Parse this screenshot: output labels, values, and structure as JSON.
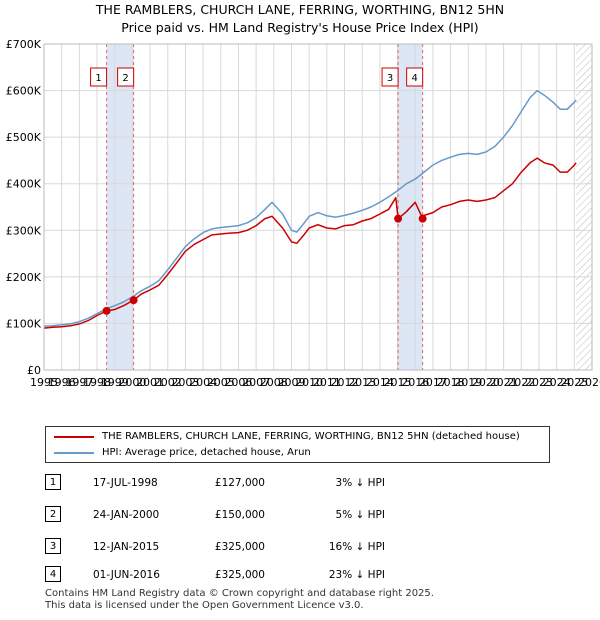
{
  "title_line1": "THE RAMBLERS, CHURCH LANE, FERRING, WORTHING, BN12 5HN",
  "title_line2": "Price paid vs. HM Land Registry's House Price Index (HPI)",
  "chart_data": {
    "type": "line",
    "xlim": [
      1995,
      2026
    ],
    "ylim": [
      0,
      700000
    ],
    "yticks": [
      0,
      100000,
      200000,
      300000,
      400000,
      500000,
      600000,
      700000
    ],
    "ytick_labels": [
      "£0",
      "£100K",
      "£200K",
      "£300K",
      "£400K",
      "£500K",
      "£600K",
      "£700K"
    ],
    "xticks": [
      1995,
      1996,
      1997,
      1998,
      1999,
      2000,
      2001,
      2002,
      2003,
      2004,
      2005,
      2006,
      2007,
      2008,
      2009,
      2010,
      2011,
      2012,
      2013,
      2014,
      2015,
      2016,
      2017,
      2018,
      2019,
      2020,
      2021,
      2022,
      2023,
      2024,
      2025,
      2026
    ],
    "xtick_labels": [
      "1995",
      "1996",
      "1997",
      "1998",
      "1999",
      "2000",
      "2001",
      "2002",
      "2003",
      "2004",
      "2005",
      "2006",
      "2007",
      "2008",
      "2009",
      "2010",
      "2011",
      "2012",
      "2013",
      "2014",
      "2015",
      "2016",
      "2017",
      "2018",
      "2019",
      "2020",
      "2021",
      "2022",
      "2023",
      "2024",
      "2025",
      "2026"
    ],
    "grid": true,
    "forecast_start": 2025.1,
    "shaded_periods": [
      [
        1998.54,
        2000.07
      ],
      [
        2015.03,
        2016.42
      ]
    ],
    "series": [
      {
        "name": "THE RAMBLERS, CHURCH LANE, FERRING, WORTHING, BN12 5HN (detached house)",
        "color": "#cc0000",
        "x": [
          1995.0,
          1995.5,
          1996.0,
          1996.5,
          1997.0,
          1997.5,
          1998.0,
          1998.54,
          1999.0,
          1999.5,
          2000.07,
          2000.5,
          2001.0,
          2001.5,
          2002.0,
          2002.5,
          2003.0,
          2003.5,
          2004.0,
          2004.5,
          2005.0,
          2005.5,
          2006.0,
          2006.5,
          2007.0,
          2007.5,
          2007.9,
          2008.5,
          2009.0,
          2009.3,
          2009.7,
          2010.0,
          2010.5,
          2011.0,
          2011.5,
          2012.0,
          2012.5,
          2013.0,
          2013.5,
          2014.0,
          2014.5,
          2014.9,
          2015.03,
          2015.1,
          2015.5,
          2016.0,
          2016.42,
          2016.5,
          2017.0,
          2017.5,
          2018.0,
          2018.5,
          2019.0,
          2019.5,
          2020.0,
          2020.5,
          2021.0,
          2021.5,
          2022.0,
          2022.5,
          2022.9,
          2023.3,
          2023.8,
          2024.2,
          2024.6,
          2025.0,
          2025.1
        ],
        "values": [
          90000,
          92000,
          93000,
          95000,
          99000,
          106000,
          117000,
          127000,
          130000,
          138000,
          150000,
          163000,
          172000,
          182000,
          205000,
          230000,
          255000,
          270000,
          280000,
          290000,
          292000,
          294000,
          295000,
          300000,
          310000,
          325000,
          330000,
          305000,
          275000,
          272000,
          290000,
          305000,
          312000,
          305000,
          303000,
          310000,
          312000,
          320000,
          325000,
          335000,
          345000,
          370000,
          325000,
          327000,
          340000,
          360000,
          325000,
          332000,
          338000,
          350000,
          355000,
          362000,
          365000,
          362000,
          365000,
          370000,
          385000,
          400000,
          425000,
          445000,
          455000,
          445000,
          440000,
          425000,
          425000,
          440000,
          445000
        ]
      },
      {
        "name": "HPI: Average price, detached house, Arun",
        "color": "#6699cc",
        "x": [
          1995.0,
          1995.5,
          1996.0,
          1996.5,
          1997.0,
          1997.5,
          1998.0,
          1998.5,
          1999.0,
          1999.5,
          2000.0,
          2000.5,
          2001.0,
          2001.5,
          2002.0,
          2002.5,
          2003.0,
          2003.5,
          2004.0,
          2004.5,
          2005.0,
          2005.5,
          2006.0,
          2006.5,
          2007.0,
          2007.5,
          2007.9,
          2008.5,
          2009.0,
          2009.3,
          2009.7,
          2010.0,
          2010.5,
          2011.0,
          2011.5,
          2012.0,
          2012.5,
          2013.0,
          2013.5,
          2014.0,
          2014.5,
          2015.0,
          2015.5,
          2016.0,
          2016.5,
          2017.0,
          2017.5,
          2018.0,
          2018.5,
          2019.0,
          2019.5,
          2020.0,
          2020.5,
          2021.0,
          2021.5,
          2022.0,
          2022.5,
          2022.9,
          2023.3,
          2023.8,
          2024.2,
          2024.6,
          2025.0,
          2025.1
        ],
        "values": [
          94000,
          95000,
          97000,
          99000,
          104000,
          111000,
          121000,
          131000,
          138000,
          146000,
          157000,
          170000,
          180000,
          192000,
          215000,
          240000,
          265000,
          282000,
          295000,
          303000,
          306000,
          308000,
          310000,
          316000,
          327000,
          345000,
          360000,
          335000,
          300000,
          296000,
          315000,
          330000,
          338000,
          331000,
          328000,
          332000,
          337000,
          343000,
          350000,
          360000,
          372000,
          385000,
          400000,
          410000,
          425000,
          440000,
          450000,
          457000,
          463000,
          465000,
          463000,
          468000,
          480000,
          500000,
          525000,
          555000,
          585000,
          600000,
          590000,
          575000,
          560000,
          560000,
          575000,
          580000
        ]
      }
    ],
    "transactions": [
      {
        "label": "1",
        "x": 1998.54,
        "y": 127000,
        "date": "17-JUL-1998",
        "price": "£127,000",
        "hpi": "3% ↓ HPI"
      },
      {
        "label": "2",
        "x": 2000.07,
        "y": 150000,
        "date": "24-JAN-2000",
        "price": "£150,000",
        "hpi": "5% ↓ HPI"
      },
      {
        "label": "3",
        "x": 2015.03,
        "y": 325000,
        "date": "12-JAN-2015",
        "price": "£325,000",
        "hpi": "16% ↓ HPI"
      },
      {
        "label": "4",
        "x": 2016.42,
        "y": 325000,
        "date": "01-JUN-2016",
        "price": "£325,000",
        "hpi": "23% ↓ HPI"
      }
    ]
  },
  "footer_line1": "Contains HM Land Registry data © Crown copyright and database right 2025.",
  "footer_line2": "This data is licensed under the Open Government Licence v3.0."
}
